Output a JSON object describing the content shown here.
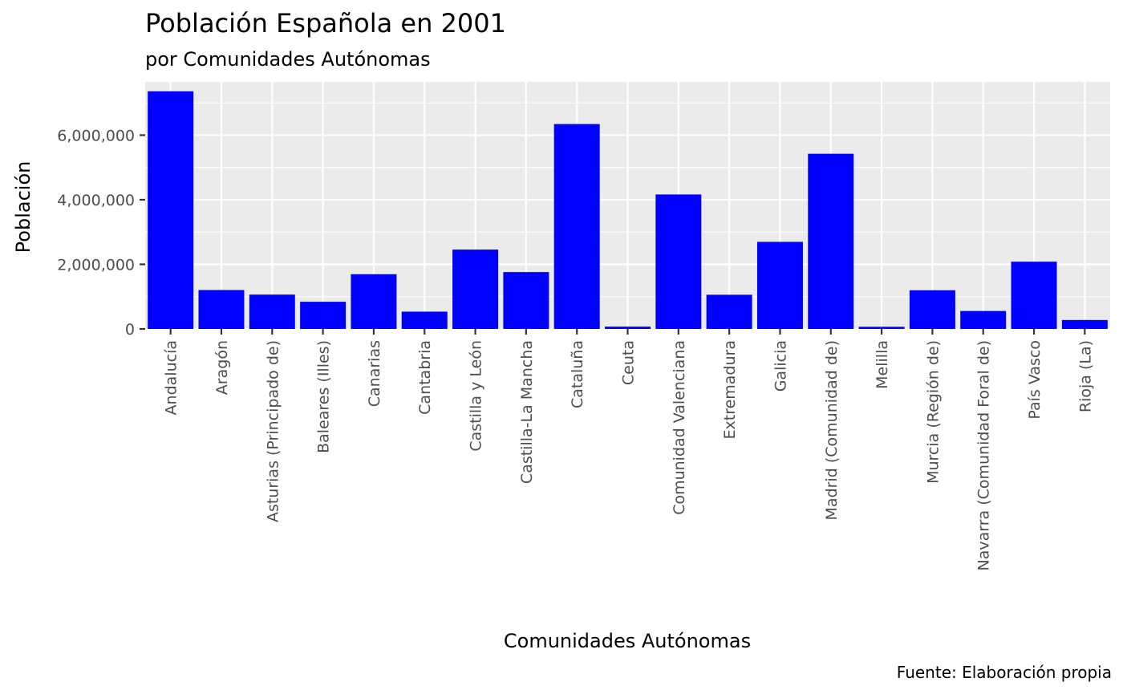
{
  "chart_data": {
    "type": "bar",
    "title": "Población Española en 2001",
    "subtitle": "por Comunidades Autónomas",
    "xlabel": "Comunidades Autónomas",
    "ylabel": "Población",
    "caption": "Fuente: Elaboración propia",
    "categories": [
      "Andalucía",
      "Aragón",
      "Asturias (Principado de)",
      "Baleares (Illes)",
      "Canarias",
      "Cantabria",
      "Castilla y León",
      "Castilla-La Mancha",
      "Cataluña",
      "Ceuta",
      "Comunidad Valenciana",
      "Extremadura",
      "Galicia",
      "Madrid (Comunidad de)",
      "Melilla",
      "Murcia (Región de)",
      "Navarra (Comunidad Foral de)",
      "País Vasco",
      "Rioja (La)"
    ],
    "values": [
      7357558,
      1204215,
      1062998,
      841669,
      1694477,
      535131,
      2456474,
      1760516,
      6343110,
      71505,
      4162776,
      1058503,
      2695880,
      5423384,
      66411,
      1197646,
      555829,
      2082587,
      276702
    ],
    "ylim": [
      0,
      7650000
    ],
    "yticks": [
      0,
      2000000,
      4000000,
      6000000
    ],
    "ytick_labels": [
      "0",
      "2,000,000",
      "4,000,000",
      "6,000,000"
    ],
    "bar_color": "#0000ff",
    "panel_background": "#ebebeb",
    "grid_color": "#ffffff",
    "grid": true,
    "legend": "none"
  }
}
